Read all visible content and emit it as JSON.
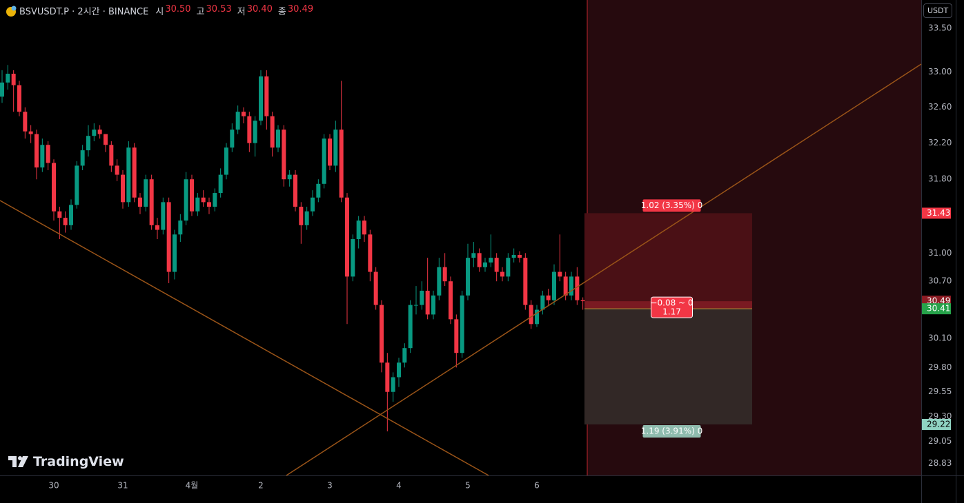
{
  "legend": {
    "symbol": "BSVUSDT.P · 2시간 · BINANCE",
    "items": [
      {
        "key": "시",
        "value": "30.50"
      },
      {
        "key": "고",
        "value": "30.53"
      },
      {
        "key": "저",
        "value": "30.40"
      },
      {
        "key": "종",
        "value": "30.49"
      }
    ]
  },
  "currency_button": "USDT",
  "logo": "TradingView",
  "chart_data": {
    "type": "candlestick",
    "log_scale": true,
    "grid": false,
    "up_color": "#089981",
    "down_color": "#f23645",
    "x": [
      0,
      1,
      2,
      3,
      4,
      5,
      6,
      7,
      8,
      9,
      10,
      11,
      12,
      13,
      14,
      15,
      16,
      17,
      18,
      19,
      20,
      21,
      22,
      23,
      24,
      25,
      26,
      27,
      28,
      29,
      30,
      31,
      32,
      33,
      34,
      35,
      36,
      37,
      38,
      39,
      40,
      41,
      42,
      43,
      44,
      45,
      46,
      47,
      48,
      49,
      50,
      51,
      52,
      53,
      54,
      55,
      56,
      57,
      58,
      59,
      60,
      61,
      62,
      63,
      64,
      65,
      66,
      67,
      68,
      69,
      70,
      71,
      72,
      73,
      74,
      75,
      76,
      77,
      78,
      79,
      80,
      81,
      82,
      83,
      84,
      85,
      86,
      87,
      88,
      89,
      90,
      91,
      92,
      93,
      94,
      95,
      96,
      97,
      98,
      99,
      100,
      101
    ],
    "open": [
      32.72,
      32.88,
      32.98,
      32.85,
      32.55,
      32.33,
      32.3,
      31.93,
      32.18,
      31.98,
      31.45,
      31.38,
      31.3,
      31.52,
      31.95,
      32.12,
      32.28,
      32.35,
      32.3,
      32.18,
      31.95,
      31.85,
      31.55,
      32.15,
      31.6,
      31.5,
      31.8,
      31.3,
      31.25,
      31.55,
      30.8,
      31.2,
      31.35,
      31.8,
      31.45,
      31.6,
      31.55,
      31.5,
      31.65,
      31.85,
      32.15,
      32.35,
      32.55,
      32.5,
      32.2,
      32.45,
      32.95,
      32.5,
      32.15,
      32.35,
      31.8,
      31.85,
      31.5,
      31.3,
      31.45,
      31.6,
      31.75,
      32.25,
      31.95,
      32.35,
      31.6,
      30.75,
      31.15,
      31.35,
      31.2,
      30.8,
      30.45,
      29.85,
      29.55,
      29.7,
      29.85,
      30.0,
      30.45,
      30.45,
      30.6,
      30.35,
      30.55,
      30.85,
      30.7,
      30.3,
      29.95,
      30.55,
      30.95,
      31.0,
      30.85,
      30.9,
      30.95,
      30.8,
      30.75,
      30.95,
      30.98,
      30.95,
      30.45,
      30.25,
      30.4,
      30.55,
      30.5,
      30.8,
      30.75,
      30.55,
      30.75,
      30.5
    ],
    "high": [
      33.02,
      33.08,
      33.02,
      32.9,
      32.6,
      32.4,
      32.35,
      32.25,
      32.22,
      32.02,
      31.5,
      31.45,
      31.58,
      32.0,
      32.18,
      32.4,
      32.42,
      32.4,
      32.25,
      32.22,
      32.02,
      31.9,
      32.22,
      32.2,
      31.65,
      31.85,
      31.85,
      31.38,
      31.6,
      31.6,
      31.25,
      31.42,
      31.88,
      31.85,
      31.65,
      31.68,
      31.6,
      31.7,
      31.92,
      32.2,
      32.42,
      32.62,
      32.6,
      32.55,
      32.5,
      33.02,
      33.02,
      32.55,
      32.4,
      32.4,
      31.9,
      31.9,
      31.55,
      31.5,
      31.68,
      31.8,
      32.3,
      32.3,
      32.45,
      32.9,
      31.65,
      31.2,
      31.4,
      31.4,
      31.25,
      30.85,
      30.5,
      29.95,
      29.75,
      29.9,
      30.05,
      30.5,
      30.65,
      30.7,
      30.95,
      30.6,
      30.95,
      31.0,
      30.75,
      30.35,
      30.6,
      31.1,
      31.12,
      31.05,
      30.95,
      31.2,
      31.0,
      30.85,
      31.0,
      31.05,
      31.02,
      31.0,
      30.5,
      30.45,
      30.6,
      30.62,
      30.88,
      31.2,
      30.8,
      30.8,
      30.85,
      30.53
    ],
    "low": [
      32.65,
      32.8,
      32.55,
      32.5,
      32.25,
      32.2,
      31.8,
      31.88,
      31.9,
      31.35,
      31.15,
      31.22,
      31.25,
      31.48,
      31.9,
      32.05,
      32.22,
      32.25,
      32.1,
      31.88,
      31.78,
      31.48,
      31.5,
      31.55,
      31.42,
      31.45,
      31.25,
      31.15,
      31.2,
      30.68,
      30.72,
      31.12,
      31.3,
      31.4,
      31.4,
      31.5,
      31.42,
      31.45,
      31.6,
      31.8,
      32.1,
      32.3,
      32.42,
      32.1,
      32.05,
      32.4,
      32.35,
      32.05,
      32.1,
      31.72,
      31.72,
      31.45,
      31.1,
      31.25,
      31.4,
      31.55,
      31.7,
      31.9,
      31.88,
      31.55,
      30.25,
      30.7,
      31.05,
      31.12,
      30.7,
      30.4,
      29.75,
      29.15,
      29.45,
      29.6,
      29.8,
      29.95,
      30.35,
      30.4,
      30.3,
      30.3,
      30.5,
      30.65,
      30.25,
      29.8,
      29.9,
      30.5,
      30.85,
      30.8,
      30.8,
      30.85,
      30.7,
      30.7,
      30.7,
      30.9,
      30.9,
      30.4,
      30.2,
      30.22,
      30.35,
      30.45,
      30.45,
      30.7,
      30.5,
      30.5,
      30.45,
      30.4
    ],
    "close": [
      32.88,
      32.98,
      32.85,
      32.55,
      32.33,
      32.3,
      31.93,
      32.18,
      31.98,
      31.45,
      31.38,
      31.3,
      31.52,
      31.95,
      32.12,
      32.28,
      32.35,
      32.3,
      32.18,
      31.95,
      31.85,
      31.55,
      32.15,
      31.6,
      31.5,
      31.8,
      31.3,
      31.25,
      31.55,
      30.8,
      31.2,
      31.35,
      31.8,
      31.45,
      31.6,
      31.55,
      31.5,
      31.65,
      31.85,
      32.15,
      32.35,
      32.55,
      32.5,
      32.2,
      32.45,
      32.95,
      32.5,
      32.15,
      32.35,
      31.8,
      31.85,
      31.5,
      31.3,
      31.45,
      31.6,
      31.75,
      32.25,
      31.95,
      32.35,
      31.6,
      30.75,
      31.15,
      31.35,
      31.2,
      30.8,
      30.45,
      29.85,
      29.55,
      29.7,
      29.85,
      30.0,
      30.45,
      30.45,
      30.6,
      30.35,
      30.55,
      30.85,
      30.7,
      30.3,
      29.95,
      30.55,
      30.95,
      31.0,
      30.85,
      30.9,
      30.95,
      30.8,
      30.75,
      30.95,
      30.98,
      30.95,
      30.45,
      30.25,
      30.4,
      30.55,
      30.5,
      30.8,
      30.75,
      30.55,
      30.75,
      30.5,
      30.49
    ],
    "xlim": [
      -0.36,
      159.84
    ],
    "xticks": [
      {
        "value": 9,
        "label": "30"
      },
      {
        "value": 21,
        "label": "31"
      },
      {
        "value": 33,
        "label": "4월"
      },
      {
        "value": 45,
        "label": "2"
      },
      {
        "value": 57,
        "label": "3"
      },
      {
        "value": 69,
        "label": "4"
      },
      {
        "value": 81,
        "label": "5"
      },
      {
        "value": 93,
        "label": "6"
      }
    ],
    "ylim": [
      28.71,
      33.83
    ],
    "yticks": [
      {
        "value": 33.5,
        "label": "33.50"
      },
      {
        "value": 33,
        "label": "33.00"
      },
      {
        "value": 32.6,
        "label": "32.60"
      },
      {
        "value": 32.2,
        "label": "32.20"
      },
      {
        "value": 31.8,
        "label": "31.80"
      },
      {
        "value": 31,
        "label": "31.00"
      },
      {
        "value": 30.7,
        "label": "30.70"
      },
      {
        "value": 30.1,
        "label": "30.10"
      },
      {
        "value": 29.8,
        "label": "29.80"
      },
      {
        "value": 29.55,
        "label": "29.55"
      },
      {
        "value": 29.3,
        "label": "29.30"
      },
      {
        "value": 29.05,
        "label": "29.05"
      },
      {
        "value": 28.83,
        "label": "28.83"
      }
    ],
    "price_labels": [
      {
        "value": 31.43,
        "label": "31.43",
        "color": "#f23645"
      },
      {
        "value": 30.49,
        "label": "30.49",
        "color": "#8c1c24"
      },
      {
        "value": 30.41,
        "label": "30.41",
        "color": "#26a24a"
      },
      {
        "value": 29.22,
        "label": "29.22",
        "color": "#8fd3c2"
      }
    ],
    "position_labels": [
      "1.02 (3.35%) 0",
      "−0.08 ~ 0",
      "1.17",
      "1.19 (3.91%) 0"
    ]
  }
}
